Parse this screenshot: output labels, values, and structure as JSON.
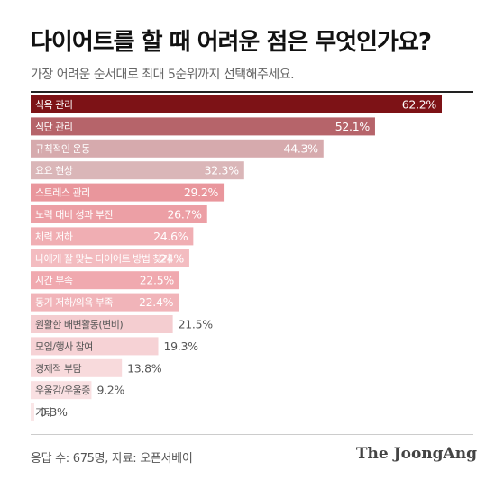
{
  "title": "다이어트를 할 때 어려운 점은 무엇인가요?",
  "subtitle": "가장 어려운 순서대로 최대 5순위까지 선택해주세요.",
  "footer_note": "응답 수: 675명, 자료: 오픈서베이",
  "brand": "The JoongAng",
  "chart_data": {
    "type": "bar",
    "orientation": "horizontal",
    "title": "다이어트를 할 때 어려운 점은 무엇인가요?",
    "unit": "%",
    "xlim": [
      0,
      62.2
    ],
    "categories": [
      "식욕 관리",
      "식단 관리",
      "규칙적인 운동",
      "요요 현상",
      "스트레스 관리",
      "노력 대비 성과 부진",
      "체력 저하",
      "나에게 잘 맞는 다이어트 방법 찾기",
      "시간 부족",
      "동기 저하/의욕 부족",
      "원활한 배변활동(변비)",
      "모임/행사 참여",
      "경제적 부담",
      "우울감/우울증",
      "기타"
    ],
    "values": [
      62.2,
      52.1,
      44.3,
      32.3,
      29.2,
      26.7,
      24.6,
      24,
      22.5,
      22.4,
      21.5,
      19.3,
      13.8,
      9.2,
      0.3
    ],
    "value_labels": [
      "62.2%",
      "52.1%",
      "44.3%",
      "32.3%",
      "29.2%",
      "26.7%",
      "24.6%",
      "24%",
      "22.5%",
      "22.4%",
      "21.5%",
      "19.3%",
      "13.8%",
      "9.2%",
      "0.3%"
    ],
    "colors": [
      "#7d1216",
      "#b6646a",
      "#d6aaad",
      "#dab6b8",
      "#e9969c",
      "#ec9fa5",
      "#f0aeb3",
      "#f3bcc0",
      "#f0a9af",
      "#f1b4b9",
      "#f4cdd0",
      "#f6d2d5",
      "#f8dadc",
      "#f9e0e2",
      "#fae6e7"
    ],
    "value_label_colors": [
      "#ffffff",
      "#ffffff",
      "#ffffff",
      "#ffffff",
      "#ffffff",
      "#ffffff",
      "#ffffff",
      "#ffffff",
      "#ffffff",
      "#ffffff",
      "#555555",
      "#555555",
      "#555555",
      "#555555",
      "#555555"
    ]
  }
}
